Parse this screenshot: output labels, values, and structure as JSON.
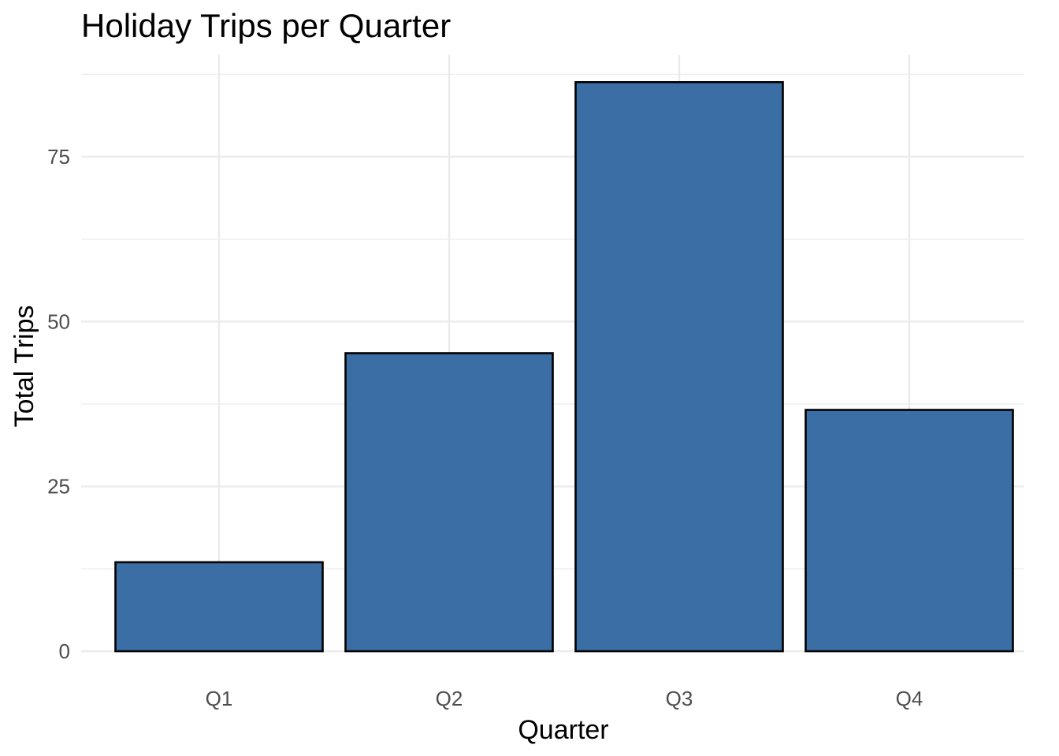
{
  "chart_data": {
    "type": "bar",
    "title": "Holiday Trips per Quarter",
    "xlabel": "Quarter",
    "ylabel": "Total Trips",
    "categories": [
      "Q1",
      "Q2",
      "Q3",
      "Q4"
    ],
    "values": [
      13.5,
      45.2,
      86.3,
      36.6
    ],
    "ylim": [
      0,
      90.4
    ],
    "y_ticks": [
      0,
      25,
      50,
      75
    ],
    "y_tick_labels": [
      "0",
      "25",
      "50",
      "75"
    ],
    "y_minor_ticks": [
      12.5,
      37.5,
      62.5,
      87.5
    ],
    "grid": true,
    "legend": "none",
    "bar_color": "#3a6ea5",
    "bar_outline": "#000000"
  }
}
